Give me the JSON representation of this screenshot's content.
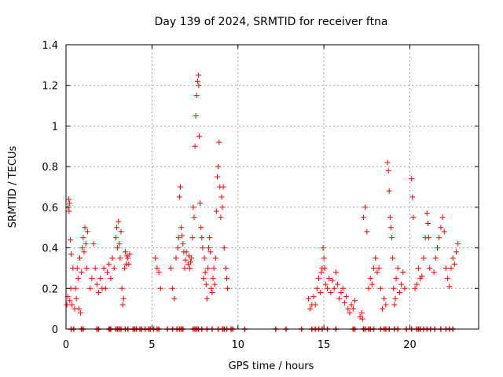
{
  "chart_data": {
    "type": "scatter",
    "title": "Day 139 of 2024, SRMTID for receiver ftna",
    "xlabel": "GPS time / hours",
    "ylabel": "SRMTID / TECUs",
    "xlim": [
      0,
      24
    ],
    "ylim": [
      0,
      1.4
    ],
    "xticks": [
      0,
      5,
      10,
      15,
      20
    ],
    "yticks": [
      0,
      0.2,
      0.4,
      0.6,
      0.8,
      1,
      1.2,
      1.4
    ],
    "xtick_labels": [
      "0",
      "5",
      "10",
      "15",
      "20"
    ],
    "ytick_labels": [
      "0",
      "0.2",
      "0.4",
      "0.6",
      "0.8",
      "1",
      "1.2",
      "1.4"
    ],
    "grid": true,
    "marker": "plus",
    "series_color": "#ff0000",
    "series": [
      {
        "name": "SRMTID",
        "points": [
          [
            0.05,
            0.12
          ],
          [
            0.1,
            0.16
          ],
          [
            0.12,
            0.6
          ],
          [
            0.15,
            0.64
          ],
          [
            0.18,
            0.58
          ],
          [
            0.2,
            0.62
          ],
          [
            0.22,
            0.14
          ],
          [
            0.25,
            0.44
          ],
          [
            0.28,
            0.2
          ],
          [
            0.3,
            0.37
          ],
          [
            0.35,
            0.12
          ],
          [
            0.4,
            0.3
          ],
          [
            0.5,
            0.1
          ],
          [
            0.55,
            0.2
          ],
          [
            0.6,
            0.15
          ],
          [
            0.65,
            0.3
          ],
          [
            0.7,
            0.25
          ],
          [
            0.75,
            0.1
          ],
          [
            0.8,
            0.35
          ],
          [
            0.85,
            0.08
          ],
          [
            0.9,
            0.28
          ],
          [
            0.95,
            0.4
          ],
          [
            1.0,
            0.45
          ],
          [
            1.05,
            0.38
          ],
          [
            1.1,
            0.5
          ],
          [
            1.15,
            0.42
          ],
          [
            1.2,
            0.3
          ],
          [
            1.25,
            0.48
          ],
          [
            1.4,
            0.2
          ],
          [
            1.5,
            0.25
          ],
          [
            1.6,
            0.42
          ],
          [
            1.7,
            0.3
          ],
          [
            1.8,
            0.22
          ],
          [
            1.9,
            0.18
          ],
          [
            2.0,
            0.25
          ],
          [
            2.1,
            0.2
          ],
          [
            2.2,
            0.3
          ],
          [
            2.3,
            0.2
          ],
          [
            2.4,
            0.28
          ],
          [
            2.5,
            0.32
          ],
          [
            2.6,
            0.25
          ],
          [
            2.7,
            0.35
          ],
          [
            2.8,
            0.3
          ],
          [
            2.9,
            0.45
          ],
          [
            2.95,
            0.5
          ],
          [
            3.0,
            0.4
          ],
          [
            3.05,
            0.53
          ],
          [
            3.1,
            0.42
          ],
          [
            3.15,
            0.35
          ],
          [
            3.2,
            0.48
          ],
          [
            3.25,
            0.2
          ],
          [
            3.3,
            0.12
          ],
          [
            3.35,
            0.15
          ],
          [
            3.4,
            0.3
          ],
          [
            3.45,
            0.38
          ],
          [
            3.5,
            0.32
          ],
          [
            3.55,
            0.36
          ],
          [
            3.6,
            0.35
          ],
          [
            3.65,
            0.32
          ],
          [
            3.7,
            0.37
          ],
          [
            5.2,
            0.35
          ],
          [
            5.3,
            0.3
          ],
          [
            5.4,
            0.28
          ],
          [
            5.5,
            0.2
          ],
          [
            6.1,
            0.3
          ],
          [
            6.2,
            0.2
          ],
          [
            6.3,
            0.15
          ],
          [
            6.4,
            0.35
          ],
          [
            6.5,
            0.4
          ],
          [
            6.55,
            0.45
          ],
          [
            6.6,
            0.65
          ],
          [
            6.65,
            0.7
          ],
          [
            6.7,
            0.5
          ],
          [
            6.75,
            0.46
          ],
          [
            6.8,
            0.42
          ],
          [
            6.85,
            0.38
          ],
          [
            6.9,
            0.3
          ],
          [
            6.95,
            0.34
          ],
          [
            7.0,
            0.38
          ],
          [
            7.1,
            0.32
          ],
          [
            7.15,
            0.36
          ],
          [
            7.2,
            0.3
          ],
          [
            7.25,
            0.33
          ],
          [
            7.3,
            0.35
          ],
          [
            7.35,
            0.45
          ],
          [
            7.4,
            0.6
          ],
          [
            7.45,
            0.55
          ],
          [
            7.5,
            0.9
          ],
          [
            7.55,
            1.05
          ],
          [
            7.6,
            1.15
          ],
          [
            7.65,
            1.22
          ],
          [
            7.7,
            1.25
          ],
          [
            7.72,
            1.2
          ],
          [
            7.75,
            0.95
          ],
          [
            7.8,
            0.62
          ],
          [
            7.85,
            0.5
          ],
          [
            7.9,
            0.45
          ],
          [
            7.95,
            0.4
          ],
          [
            8.0,
            0.25
          ],
          [
            8.05,
            0.35
          ],
          [
            8.1,
            0.28
          ],
          [
            8.15,
            0.22
          ],
          [
            8.2,
            0.15
          ],
          [
            8.25,
            0.3
          ],
          [
            8.3,
            0.4
          ],
          [
            8.35,
            0.45
          ],
          [
            8.4,
            0.38
          ],
          [
            8.45,
            0.2
          ],
          [
            8.5,
            0.18
          ],
          [
            8.55,
            0.25
          ],
          [
            8.6,
            0.3
          ],
          [
            8.65,
            0.22
          ],
          [
            8.7,
            0.35
          ],
          [
            8.75,
            0.58
          ],
          [
            8.8,
            0.75
          ],
          [
            8.85,
            0.8
          ],
          [
            8.9,
            0.92
          ],
          [
            8.95,
            0.7
          ],
          [
            9.0,
            0.55
          ],
          [
            9.05,
            0.65
          ],
          [
            9.1,
            0.6
          ],
          [
            9.15,
            0.7
          ],
          [
            9.2,
            0.4
          ],
          [
            9.3,
            0.3
          ],
          [
            9.35,
            0.25
          ],
          [
            9.4,
            0.2
          ],
          [
            14.1,
            0.15
          ],
          [
            14.2,
            0.1
          ],
          [
            14.3,
            0.12
          ],
          [
            14.4,
            0.16
          ],
          [
            14.5,
            0.12
          ],
          [
            14.6,
            0.2
          ],
          [
            14.7,
            0.25
          ],
          [
            14.8,
            0.18
          ],
          [
            14.85,
            0.28
          ],
          [
            14.9,
            0.3
          ],
          [
            14.95,
            0.4
          ],
          [
            15.0,
            0.35
          ],
          [
            15.05,
            0.3
          ],
          [
            15.1,
            0.22
          ],
          [
            15.2,
            0.2
          ],
          [
            15.3,
            0.25
          ],
          [
            15.4,
            0.18
          ],
          [
            15.5,
            0.24
          ],
          [
            15.6,
            0.2
          ],
          [
            15.7,
            0.28
          ],
          [
            15.8,
            0.22
          ],
          [
            15.9,
            0.15
          ],
          [
            16.0,
            0.18
          ],
          [
            16.1,
            0.2
          ],
          [
            16.2,
            0.13
          ],
          [
            16.3,
            0.16
          ],
          [
            16.4,
            0.1
          ],
          [
            16.5,
            0.08
          ],
          [
            16.6,
            0.12
          ],
          [
            16.7,
            0.1
          ],
          [
            16.8,
            0.14
          ],
          [
            17.1,
            0.06
          ],
          [
            17.2,
            0.08
          ],
          [
            17.25,
            0.05
          ],
          [
            17.3,
            0.55
          ],
          [
            17.4,
            0.6
          ],
          [
            17.5,
            0.48
          ],
          [
            17.6,
            0.2
          ],
          [
            17.7,
            0.25
          ],
          [
            17.8,
            0.22
          ],
          [
            17.9,
            0.3
          ],
          [
            18.0,
            0.35
          ],
          [
            18.1,
            0.28
          ],
          [
            18.2,
            0.3
          ],
          [
            18.3,
            0.2
          ],
          [
            18.4,
            0.1
          ],
          [
            18.5,
            0.15
          ],
          [
            18.6,
            0.12
          ],
          [
            18.7,
            0.82
          ],
          [
            18.75,
            0.78
          ],
          [
            18.8,
            0.68
          ],
          [
            18.85,
            0.55
          ],
          [
            18.9,
            0.5
          ],
          [
            18.95,
            0.45
          ],
          [
            19.0,
            0.35
          ],
          [
            19.05,
            0.2
          ],
          [
            19.1,
            0.12
          ],
          [
            19.15,
            0.15
          ],
          [
            19.2,
            0.25
          ],
          [
            19.3,
            0.3
          ],
          [
            19.4,
            0.18
          ],
          [
            19.5,
            0.22
          ],
          [
            19.6,
            0.28
          ],
          [
            19.7,
            0.2
          ],
          [
            20.1,
            0.74
          ],
          [
            20.15,
            0.65
          ],
          [
            20.2,
            0.55
          ],
          [
            20.3,
            0.2
          ],
          [
            20.4,
            0.22
          ],
          [
            20.5,
            0.3
          ],
          [
            20.6,
            0.25
          ],
          [
            20.7,
            0.26
          ],
          [
            20.8,
            0.35
          ],
          [
            20.9,
            0.45
          ],
          [
            21.0,
            0.57
          ],
          [
            21.05,
            0.52
          ],
          [
            21.1,
            0.45
          ],
          [
            21.15,
            0.3
          ],
          [
            21.4,
            0.28
          ],
          [
            21.5,
            0.35
          ],
          [
            21.6,
            0.4
          ],
          [
            21.7,
            0.45
          ],
          [
            21.8,
            0.5
          ],
          [
            21.9,
            0.55
          ],
          [
            22.0,
            0.48
          ],
          [
            22.1,
            0.3
          ],
          [
            22.2,
            0.25
          ],
          [
            22.3,
            0.21
          ],
          [
            22.4,
            0.3
          ],
          [
            22.5,
            0.35
          ],
          [
            22.6,
            0.32
          ],
          [
            22.7,
            0.38
          ],
          [
            22.8,
            0.42
          ]
        ]
      }
    ],
    "zero_markers_x": [
      0.3,
      0.45,
      0.9,
      1.0,
      1.8,
      1.9,
      2.5,
      2.55,
      2.6,
      2.9,
      3.0,
      3.1,
      3.2,
      3.45,
      3.6,
      3.9,
      4.0,
      4.1,
      4.3,
      4.4,
      4.6,
      4.8,
      4.9,
      5.1,
      5.3,
      5.4,
      5.9,
      6.2,
      6.45,
      6.6,
      6.7,
      6.8,
      7.4,
      7.5,
      7.6,
      7.7,
      7.9,
      8.2,
      8.5,
      8.85,
      9.1,
      9.2,
      9.35,
      9.6,
      9.7,
      10.4,
      12.2,
      12.8,
      13.7,
      14.3,
      14.5,
      14.7,
      14.9,
      15.2,
      15.7,
      16.7,
      16.8,
      17.3,
      17.4,
      17.6,
      17.7,
      17.9,
      18.3,
      18.5,
      18.6,
      18.8,
      19.1,
      19.3,
      19.8,
      20.1,
      20.4,
      20.5,
      20.6,
      20.8,
      21.0,
      21.2,
      21.45,
      21.8,
      22.1,
      22.3,
      22.5
    ]
  }
}
